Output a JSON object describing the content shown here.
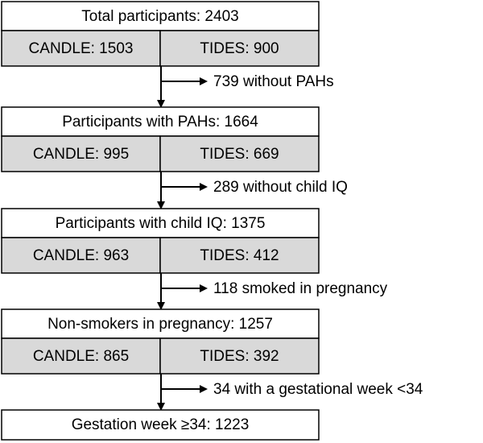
{
  "stages": [
    {
      "title": "Total participants: 2403",
      "left": "CANDLE: 1503",
      "right": "TIDES: 900"
    },
    {
      "title": "Participants with PAHs: 1664",
      "left": "CANDLE: 995",
      "right": "TIDES: 669"
    },
    {
      "title": "Participants with child IQ: 1375",
      "left": "CANDLE: 963",
      "right": "TIDES: 412"
    },
    {
      "title": "Non-smokers in pregnancy: 1257",
      "left": "CANDLE: 865",
      "right": "TIDES: 392"
    }
  ],
  "exclusions": [
    "739 without PAHs",
    "289 without child IQ",
    "118 smoked in pregnancy",
    "34 with a gestational week <34"
  ],
  "final": "Gestation week ≥34: 1223"
}
